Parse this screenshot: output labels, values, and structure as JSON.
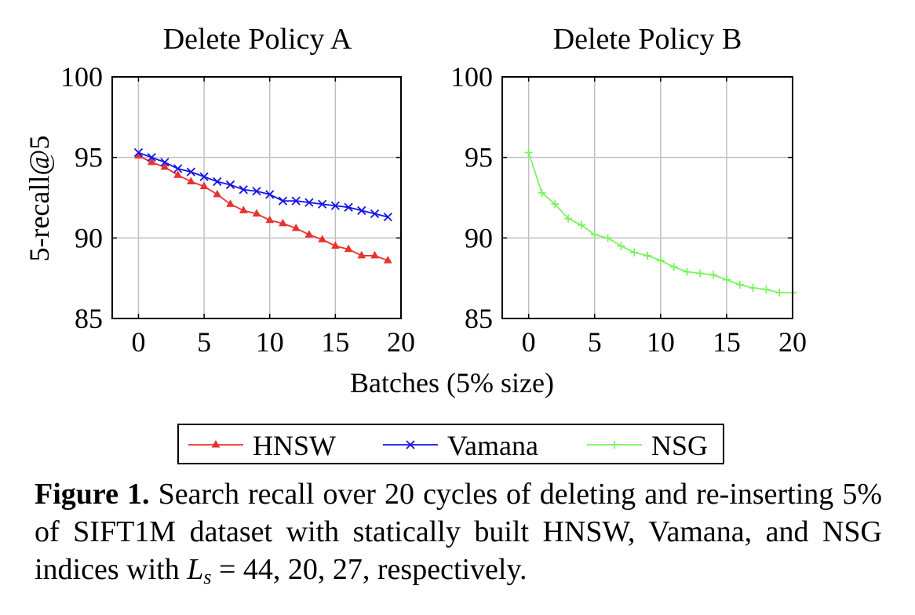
{
  "chart_data": [
    {
      "type": "line",
      "title": "Delete Policy A",
      "xlabel": "Batches (5% size)",
      "ylabel": "5-recall@5",
      "xlim": [
        -2,
        20
      ],
      "ylim": [
        85,
        100
      ],
      "xticks": [
        0,
        5,
        10,
        15,
        20
      ],
      "yticks": [
        85,
        90,
        95,
        100
      ],
      "grid": true,
      "series": [
        {
          "name": "HNSW",
          "color": "#e8322d",
          "marker": "triangle",
          "x": [
            0,
            1,
            2,
            3,
            4,
            5,
            6,
            7,
            8,
            9,
            10,
            11,
            12,
            13,
            14,
            15,
            16,
            17,
            18,
            19
          ],
          "y": [
            95.1,
            94.7,
            94.4,
            93.9,
            93.5,
            93.2,
            92.7,
            92.1,
            91.7,
            91.5,
            91.1,
            90.9,
            90.6,
            90.2,
            89.9,
            89.5,
            89.3,
            88.9,
            88.9,
            88.6
          ]
        },
        {
          "name": "Vamana",
          "color": "#1414e6",
          "marker": "x",
          "x": [
            0,
            1,
            2,
            3,
            4,
            5,
            6,
            7,
            8,
            9,
            10,
            11,
            12,
            13,
            14,
            15,
            16,
            17,
            18,
            19
          ],
          "y": [
            95.3,
            95.0,
            94.7,
            94.3,
            94.1,
            93.8,
            93.5,
            93.3,
            93.0,
            92.9,
            92.7,
            92.3,
            92.3,
            92.2,
            92.1,
            92.0,
            91.9,
            91.7,
            91.5,
            91.3
          ]
        }
      ]
    },
    {
      "type": "line",
      "title": "Delete Policy B",
      "xlim": [
        -2,
        20
      ],
      "ylim": [
        85,
        100
      ],
      "xticks": [
        0,
        5,
        10,
        15,
        20
      ],
      "yticks": [
        85,
        90,
        95,
        100
      ],
      "grid": true,
      "series": [
        {
          "name": "NSG",
          "color": "#7cf263",
          "marker": "plus",
          "x": [
            0,
            1,
            2,
            3,
            4,
            5,
            6,
            7,
            8,
            9,
            10,
            11,
            12,
            13,
            14,
            15,
            16,
            17,
            18,
            19,
            20
          ],
          "y": [
            95.3,
            92.8,
            92.1,
            91.2,
            90.8,
            90.2,
            90.0,
            89.5,
            89.1,
            88.9,
            88.6,
            88.2,
            87.9,
            87.8,
            87.7,
            87.4,
            87.1,
            86.9,
            86.8,
            86.6,
            86.6
          ]
        }
      ]
    }
  ],
  "legend": {
    "placement": "bottom-center",
    "entries": [
      "HNSW",
      "Vamana",
      "NSG"
    ]
  },
  "caption": {
    "label": "Figure 1.",
    "text_1": "Search recall over 20 cycles of deleting and re-inserting 5% of SIFT1M dataset with statically built HNSW, Vamana, and NSG indices with",
    "symbol": "L",
    "subscript": "s",
    "text_2": "= 44, 20, 27, respectively."
  }
}
